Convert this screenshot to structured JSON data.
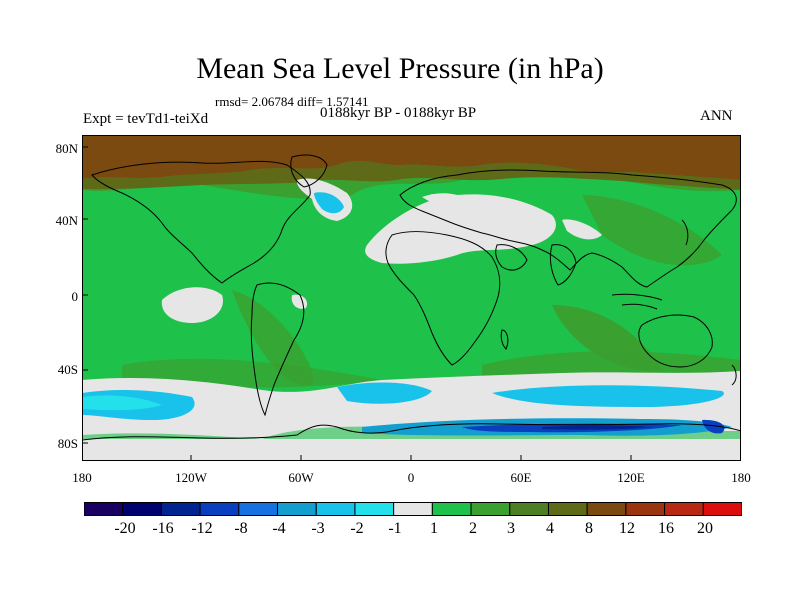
{
  "title": "Mean Sea Level Pressure (in hPa)",
  "stats": "rmsd= 2.06784 diff= 1.57141",
  "period": "0188kyr BP - 0188kyr BP",
  "experiment": "Expt = tevTd1-teiXd",
  "season": "ANN",
  "map": {
    "lat_labels": [
      "80N",
      "40N",
      "0",
      "40S",
      "80S"
    ],
    "lon_labels": [
      "180",
      "120W",
      "60W",
      "0",
      "60E",
      "120E",
      "180"
    ]
  },
  "colorbar": {
    "labels": [
      "-20",
      "-16",
      "-12",
      "-8",
      "-4",
      "-3",
      "-2",
      "-1",
      "1",
      "2",
      "3",
      "4",
      "8",
      "12",
      "16",
      "20"
    ],
    "colors": [
      "#1a0060",
      "#000070",
      "#002590",
      "#0a3fc0",
      "#1572e0",
      "#129fd0",
      "#18c2ea",
      "#24e0ea",
      "#e6e6e6",
      "#1ec24a",
      "#3aa030",
      "#4f7f23",
      "#5e6a17",
      "#7a4a10",
      "#9a3510",
      "#b82812",
      "#dd0d0d"
    ]
  }
}
